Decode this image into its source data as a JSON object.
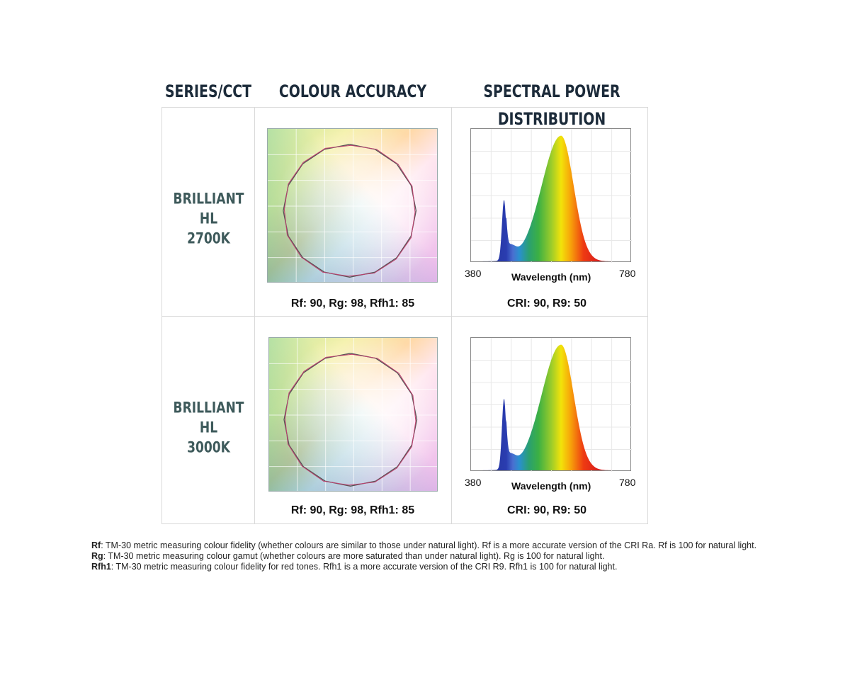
{
  "headers": {
    "series": "SERIES/CCT",
    "accuracy": "COLOUR ACCURACY",
    "spd": "SPECTRAL POWER DISTRIBUTION"
  },
  "rows": [
    {
      "series_line1": "BRILLIANT HL",
      "series_line2": "2700K",
      "accuracy_caption": "Rf: 90, Rg: 98, Rfh1: 85",
      "spd_caption": "CRI: 90, R9: 50",
      "axis_min": "380",
      "axis_max": "780",
      "axis_label": "Wavelength (nm)"
    },
    {
      "series_line1": "BRILLIANT HL",
      "series_line2": "3000K",
      "accuracy_caption": "Rf: 90, Rg: 98, Rfh1: 85",
      "spd_caption": "CRI: 90, R9: 50",
      "axis_min": "380",
      "axis_max": "780",
      "axis_label": "Wavelength (nm)"
    }
  ],
  "notes": [
    {
      "term": "Rf",
      "text": ": TM-30 metric measuring colour fidelity (whether colours are similar to those under natural light). Rf is a more accurate version of the CRI Ra. Rf is 100 for natural light."
    },
    {
      "term": "Rg",
      "text": ": TM-30 metric measuring colour gamut (whether colours are more saturated than under natural light). Rg is 100 for natural light."
    },
    {
      "term": "Rfh1",
      "text": ": TM-30 metric measuring colour fidelity for red tones. Rfh1 is a more accurate version of the CRI R9. Rfh1 is 100 for natural light."
    }
  ],
  "colors": {
    "header": "#1c2b3a",
    "series_text": "#3e5a5b",
    "border": "#d9d9d9"
  }
}
